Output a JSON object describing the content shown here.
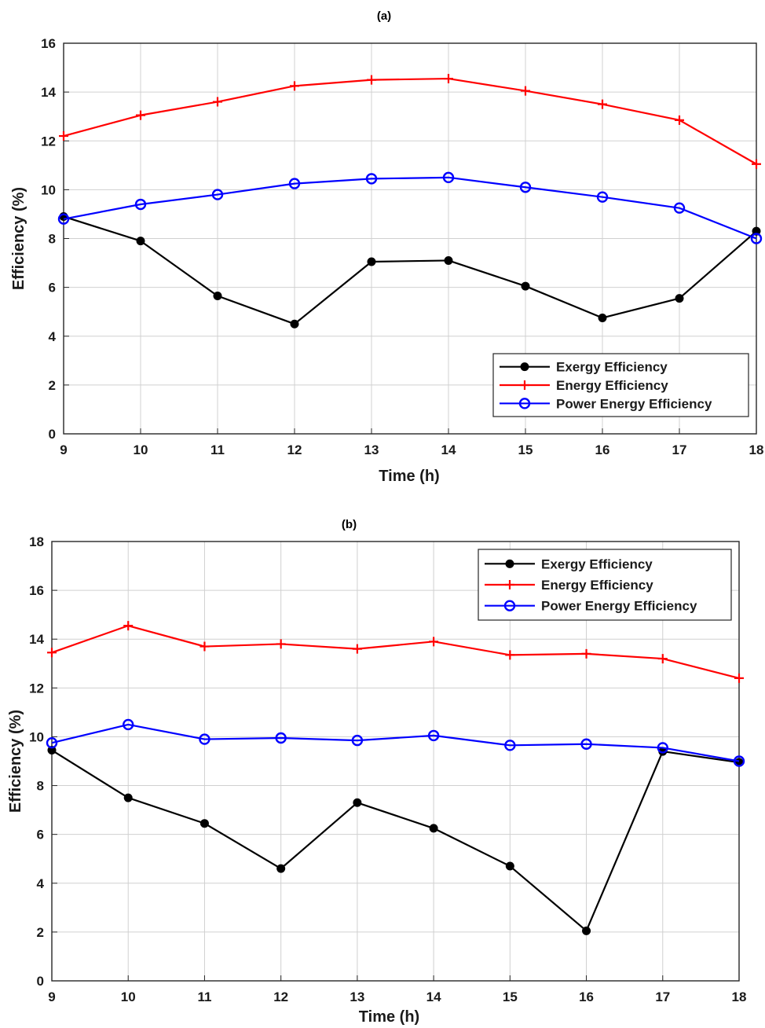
{
  "chart_data": [
    {
      "type": "line",
      "title": "(a)",
      "xlabel": "Time (h)",
      "ylabel": "Efficiency (%)",
      "x": [
        9,
        10,
        11,
        12,
        13,
        14,
        15,
        16,
        17,
        18
      ],
      "xlim": [
        9,
        18
      ],
      "ylim": [
        0,
        16
      ],
      "yticks": [
        0,
        2,
        4,
        6,
        8,
        10,
        12,
        14,
        16
      ],
      "grid": true,
      "legend_position": "bottom-right",
      "series": [
        {
          "name": "Exergy Efficiency",
          "color": "#000000",
          "marker": "dot",
          "values": [
            8.9,
            7.9,
            5.65,
            4.5,
            7.05,
            7.1,
            6.05,
            4.75,
            5.55,
            8.3
          ]
        },
        {
          "name": "Energy Efficiency",
          "color": "#ff0000",
          "marker": "plus",
          "values": [
            12.2,
            13.05,
            13.6,
            14.25,
            14.5,
            14.55,
            14.05,
            13.5,
            12.85,
            11.05
          ]
        },
        {
          "name": "Power Energy Efficiency",
          "color": "#0000ff",
          "marker": "circle",
          "values": [
            8.8,
            9.4,
            9.8,
            10.25,
            10.45,
            10.5,
            10.1,
            9.7,
            9.25,
            8.0
          ]
        }
      ]
    },
    {
      "type": "line",
      "title": "(b)",
      "xlabel": "Time (h)",
      "ylabel": "Efficiency (%)",
      "x": [
        9,
        10,
        11,
        12,
        13,
        14,
        15,
        16,
        17,
        18
      ],
      "xlim": [
        9,
        18
      ],
      "ylim": [
        0,
        18
      ],
      "yticks": [
        0,
        2,
        4,
        6,
        8,
        10,
        12,
        14,
        16,
        18
      ],
      "grid": true,
      "legend_position": "top-right",
      "series": [
        {
          "name": "Exergy Efficiency",
          "color": "#000000",
          "marker": "dot",
          "values": [
            9.45,
            7.5,
            6.45,
            4.6,
            7.3,
            6.25,
            4.7,
            2.05,
            9.4,
            8.95
          ]
        },
        {
          "name": "Energy Efficiency",
          "color": "#ff0000",
          "marker": "plus",
          "values": [
            13.45,
            14.55,
            13.7,
            13.8,
            13.6,
            13.9,
            13.35,
            13.4,
            13.2,
            12.4
          ]
        },
        {
          "name": "Power Energy Efficiency",
          "color": "#0000ff",
          "marker": "circle",
          "values": [
            9.75,
            10.5,
            9.9,
            9.95,
            9.85,
            10.05,
            9.65,
            9.7,
            9.55,
            9.0
          ]
        }
      ]
    }
  ]
}
